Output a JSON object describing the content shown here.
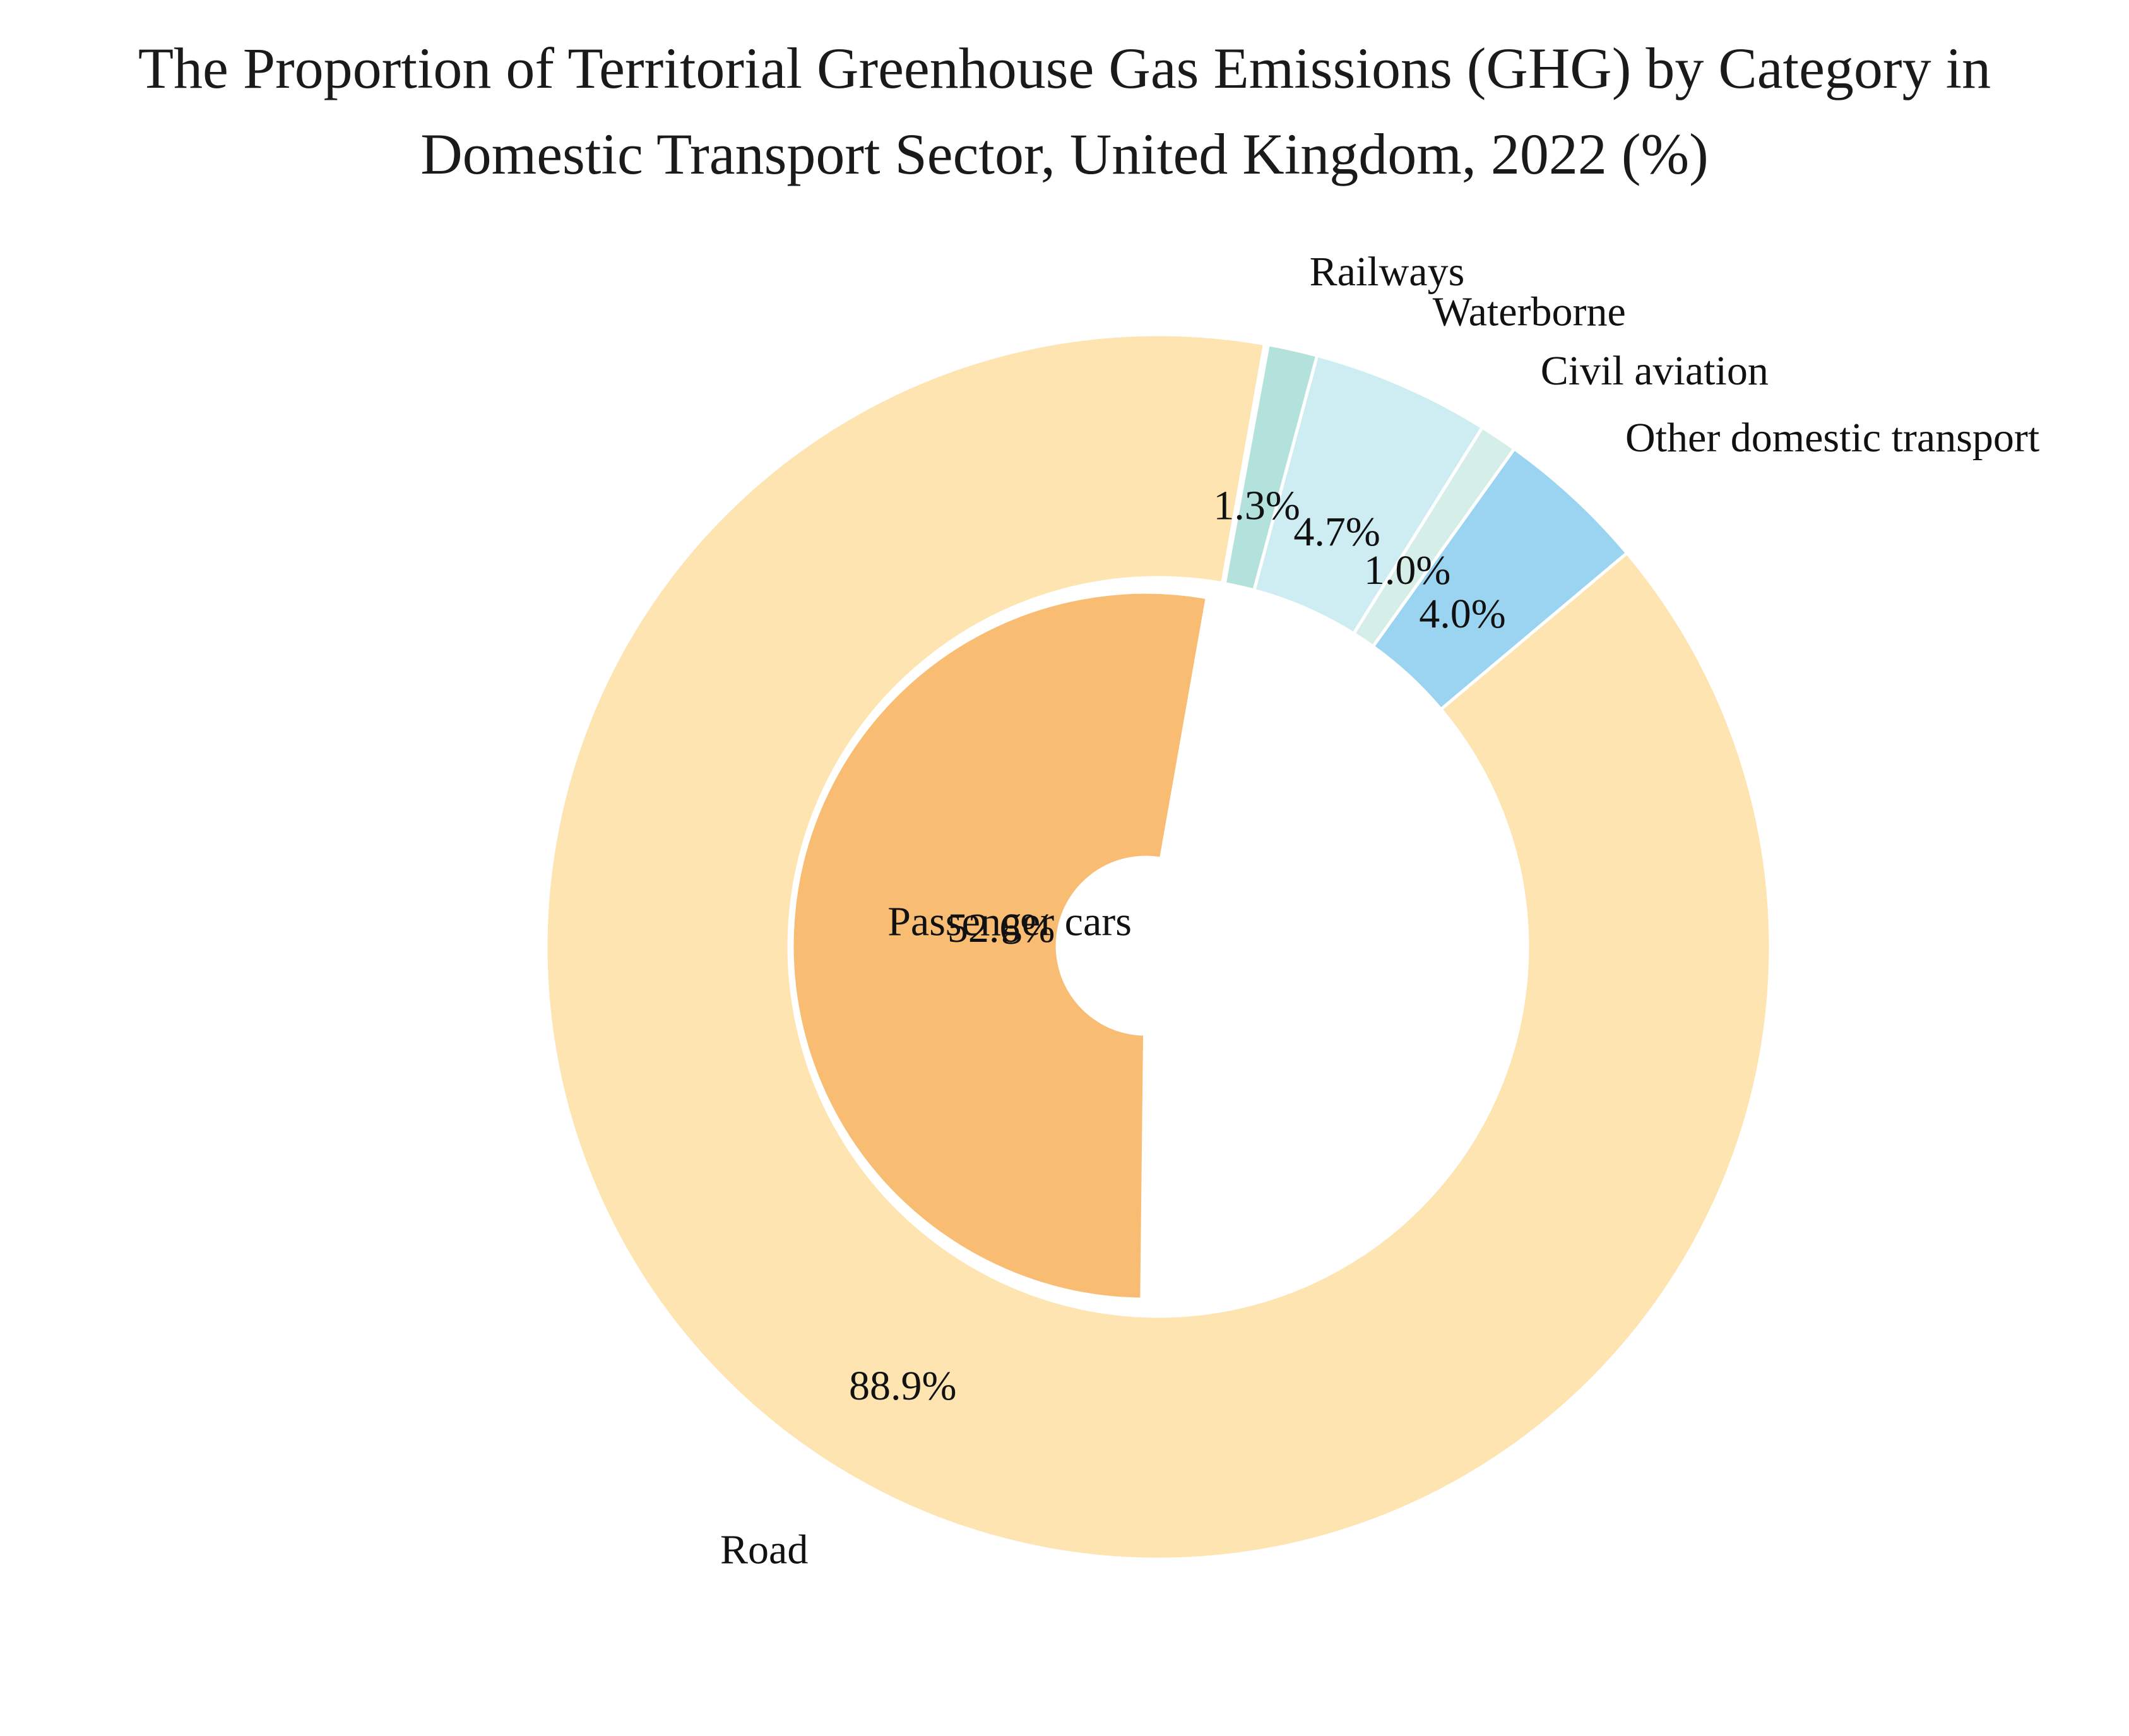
{
  "chart_data": {
    "type": "pie",
    "title_lines": [
      "The Proportion of Territorial Greenhouse Gas Emissions (GHG) by Category in",
      "Domestic Transport Sector, United Kingdom, 2022 (%)"
    ],
    "outer_ring": [
      {
        "name": "Road",
        "value": 88.9,
        "label": "88.9%",
        "color": "#fde4b0"
      },
      {
        "name": "Other domestic transport",
        "value": 4.0,
        "label": "4.0%",
        "color": "#9bd4f0"
      },
      {
        "name": "Civil aviation",
        "value": 1.0,
        "label": "1.0%",
        "color": "#d5eee8"
      },
      {
        "name": "Waterborne",
        "value": 4.7,
        "label": "4.7%",
        "color": "#cdedf2"
      },
      {
        "name": "Railways",
        "value": 1.3,
        "label": "1.3%",
        "color": "#b3e2dc"
      }
    ],
    "inner_ring": [
      {
        "name": "Passenger cars",
        "value": 52.6,
        "label": "52.6%",
        "color": "#f8bd73"
      }
    ],
    "start_angle_deg": 80,
    "direction": "counterclockwise",
    "legend": "none"
  }
}
